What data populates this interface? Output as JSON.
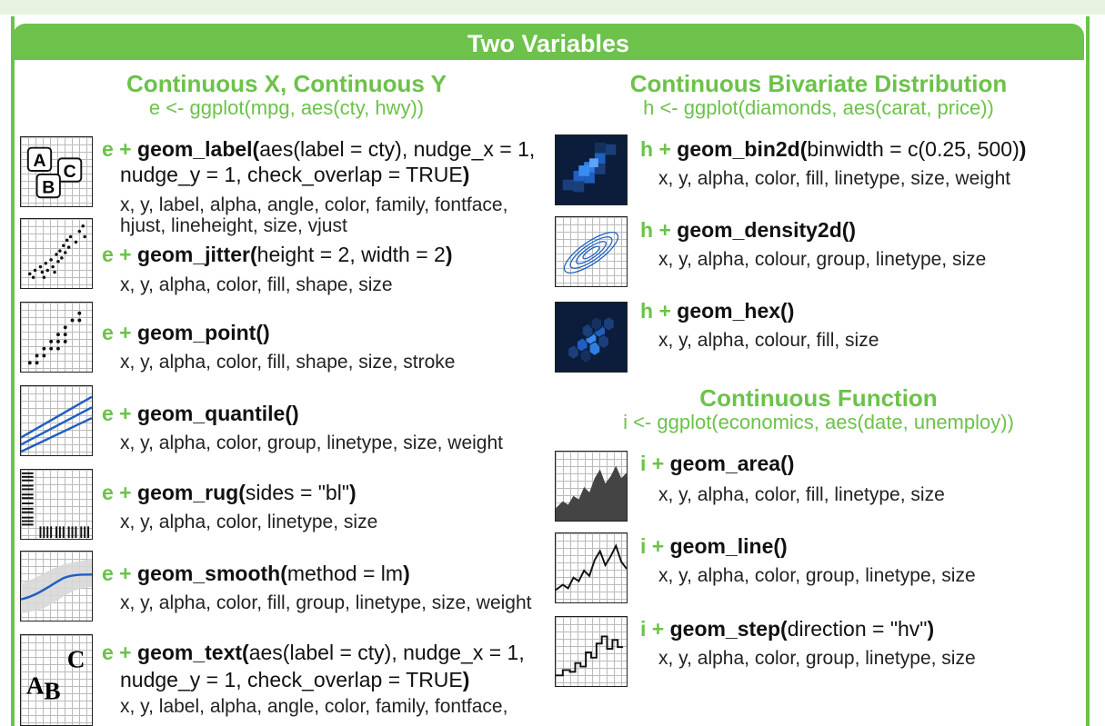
{
  "banner": "Two Variables",
  "left": {
    "title": "Continuous X, Continuous Y",
    "subtitle": "e <- ggplot(mpg, aes(cty, hwy))",
    "items": [
      {
        "var": "e +",
        "geom": "geom_label(",
        "args": "aes(label = cty), nudge_x = 1,",
        "line2a": "nudge_y = 1, check_overlap = TRUE",
        "line2b": ")",
        "aes": [
          "x, y, label, alpha, angle, color, family, fontface,",
          "hjust, lineheight, size, vjust"
        ],
        "icon": "label-boxes-icon",
        "icon_text": [
          "A",
          "B",
          "C"
        ]
      },
      {
        "var": "e +",
        "geom": "geom_jitter(",
        "args": "height = 2, width = 2",
        "close": ")",
        "aes": [
          "x, y, alpha, color, fill, shape, size"
        ],
        "icon": "jitter-plot-icon"
      },
      {
        "var": "e +",
        "geom": "geom_point()",
        "args": "",
        "close": "",
        "aes": [
          "x, y, alpha, color, fill, shape, size, stroke"
        ],
        "icon": "point-plot-icon"
      },
      {
        "var": "e +",
        "geom": "geom_quantile()",
        "args": "",
        "close": "",
        "aes": [
          "x, y, alpha, color, group, linetype, size, weight"
        ],
        "icon": "quantile-plot-icon"
      },
      {
        "var": "e +",
        "geom": "geom_rug(",
        "args": "sides = \"bl\"",
        "close": ")",
        "aes": [
          "x, y, alpha, color, linetype, size"
        ],
        "icon": "rug-plot-icon"
      },
      {
        "var": "e +",
        "geom": "geom_smooth(",
        "args": "method = lm",
        "close": ")",
        "aes": [
          "x, y, alpha, color, fill, group, linetype, size, weight"
        ],
        "icon": "smooth-plot-icon"
      },
      {
        "var": "e +",
        "geom": "geom_text(",
        "args": "aes(label = cty), nudge_x = 1,",
        "line2a": "nudge_y = 1, check_overlap = TRUE",
        "line2b": ")",
        "aes": [
          "x, y, label, alpha, angle, color, family, fontface,"
        ],
        "icon": "text-glyphs-icon",
        "icon_text": [
          "A",
          "B",
          "C"
        ]
      }
    ]
  },
  "right_top": {
    "title": "Continuous Bivariate Distribution",
    "subtitle": "h <- ggplot(diamonds, aes(carat, price))",
    "items": [
      {
        "var": "h +",
        "geom": "geom_bin2d(",
        "args": "binwidth = c(0.25, 500)",
        "close": ")",
        "aes": [
          "x, y, alpha, color, fill, linetype, size, weight"
        ],
        "icon": "bin2d-plot-icon"
      },
      {
        "var": "h +",
        "geom": "geom_density2d()",
        "args": "",
        "close": "",
        "aes": [
          "x, y, alpha, colour, group, linetype, size"
        ],
        "icon": "density2d-plot-icon"
      },
      {
        "var": "h +",
        "geom": "geom_hex()",
        "args": "",
        "close": "",
        "aes": [
          "x, y, alpha, colour, fill, size"
        ],
        "icon": "hex-plot-icon"
      }
    ]
  },
  "right_bottom": {
    "title": "Continuous Function",
    "subtitle": "i <- ggplot(economics, aes(date, unemploy))",
    "items": [
      {
        "var": "i +",
        "geom": "geom_area()",
        "args": "",
        "close": "",
        "aes": [
          "x, y, alpha, color, fill, linetype, size"
        ],
        "icon": "area-plot-icon"
      },
      {
        "var": "i +",
        "geom": "geom_line()",
        "args": "",
        "close": "",
        "aes": [
          "x, y, alpha, color, group, linetype, size"
        ],
        "icon": "line-plot-icon"
      },
      {
        "var": "i +",
        "geom": "geom_step(",
        "args": "direction = \"hv\"",
        "close": ")",
        "aes": [
          "x, y, alpha, color, group, linetype, size"
        ],
        "icon": "step-plot-icon"
      }
    ]
  },
  "colors": {
    "accent": "#6cc24a",
    "plot_blue": "#1f5fbf",
    "dark_bg": "#0b1d3a",
    "area_fill": "#444444"
  }
}
